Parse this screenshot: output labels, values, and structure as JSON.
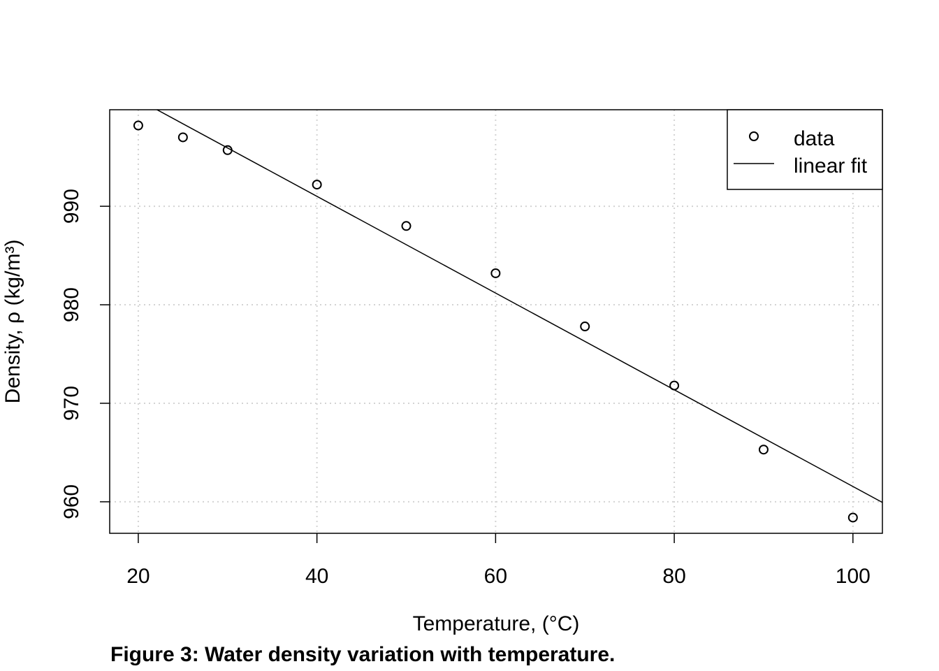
{
  "chart_data": {
    "type": "scatter",
    "title": "",
    "xlabel": "Temperature, (°C)",
    "ylabel": "Density, ρ (kg/m³)",
    "xlim": [
      16.8,
      103.3
    ],
    "ylim": [
      956.8,
      999.8
    ],
    "xticks": [
      20,
      40,
      60,
      80,
      100
    ],
    "yticks": [
      960,
      970,
      980,
      990
    ],
    "grid": true,
    "legend": {
      "placement": "top-right",
      "entries": [
        "data",
        "linear fit"
      ]
    },
    "series": [
      {
        "name": "data",
        "kind": "points",
        "x": [
          20,
          25,
          30,
          40,
          50,
          60,
          70,
          80,
          90,
          100
        ],
        "y": [
          998.2,
          997.0,
          995.7,
          992.2,
          988.0,
          983.2,
          977.8,
          971.8,
          965.3,
          958.4
        ]
      },
      {
        "name": "linear fit",
        "kind": "line",
        "slope": -0.491,
        "intercept": 1010.65
      }
    ]
  },
  "caption": "Figure 3: Water density variation with temperature."
}
